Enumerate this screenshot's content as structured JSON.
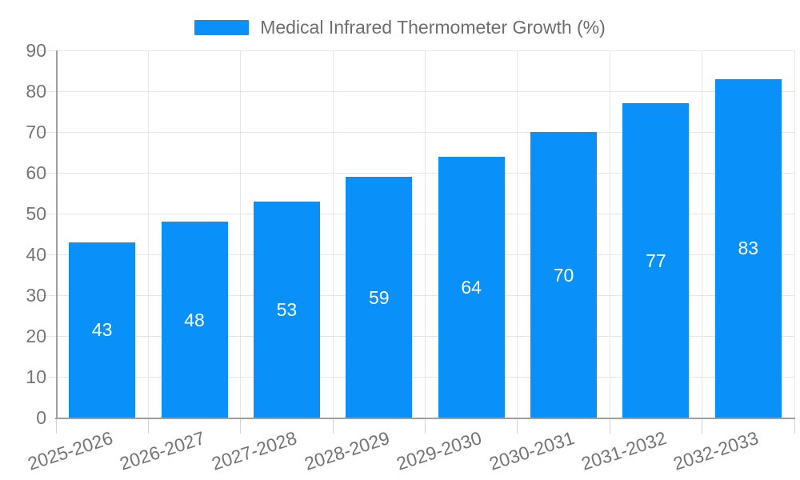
{
  "legend": {
    "label": "Medical Infrared Thermometer Growth (%)"
  },
  "chart_data": {
    "type": "bar",
    "title": "Medical Infrared Thermometer Growth (%)",
    "categories": [
      "2025-2026",
      "2026-2027",
      "2027-2028",
      "2028-2029",
      "2029-2030",
      "2030-2031",
      "2031-2032",
      "2032-2033"
    ],
    "values": [
      43,
      48,
      53,
      59,
      64,
      70,
      77,
      83
    ],
    "xlabel": "",
    "ylabel": "",
    "ylim": [
      0,
      90
    ],
    "ytick_step": 10,
    "ytick_labels": [
      "0",
      "10",
      "20",
      "30",
      "40",
      "50",
      "60",
      "70",
      "80",
      "90"
    ],
    "grid": true,
    "legend_position": "top-center",
    "value_labels_inside_bars": true
  },
  "colors": {
    "bar": "#0a90f9",
    "value_label": "#ffffff",
    "grid": "#e6e6e6",
    "axis": "#9e9e9e",
    "tick_label": "#757575",
    "legend_text": "#6e6e6e"
  }
}
